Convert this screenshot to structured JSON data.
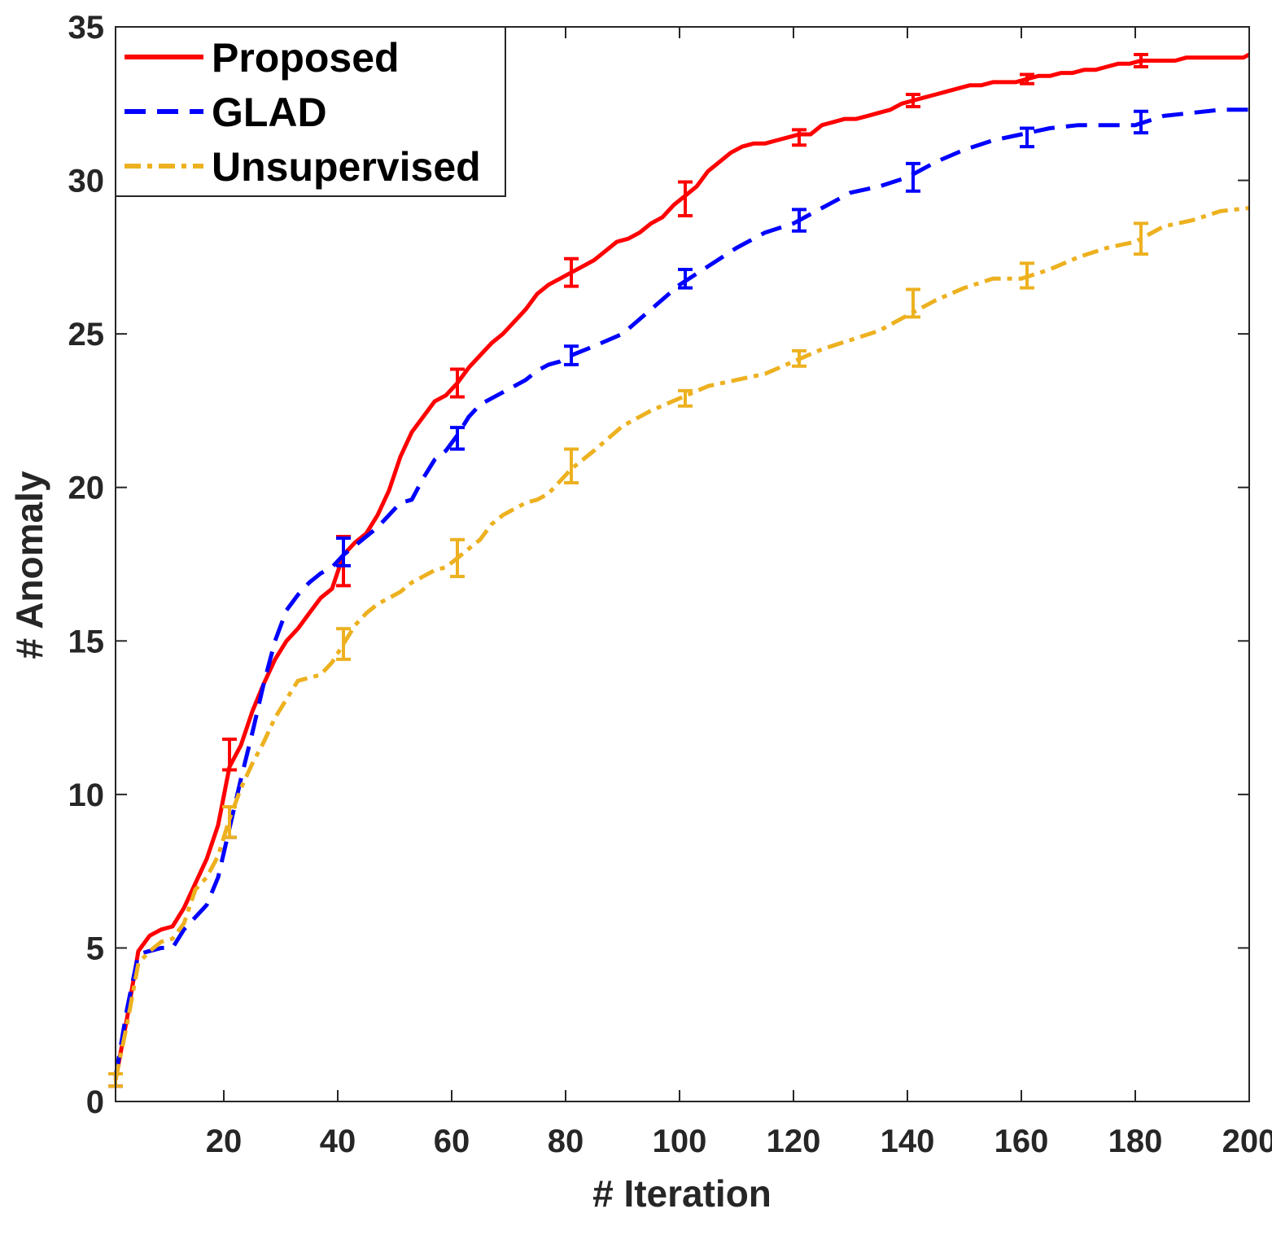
{
  "chart_data": {
    "type": "line",
    "xlabel": "# Iteration",
    "ylabel": "# Anomaly",
    "xlim": [
      1,
      200
    ],
    "ylim": [
      0,
      35
    ],
    "xticks": [
      20,
      40,
      60,
      80,
      100,
      120,
      140,
      160,
      180,
      200
    ],
    "xtick_labels": [
      "20",
      "40",
      "60",
      "80",
      "100",
      "120",
      "140",
      "160",
      "180",
      "200"
    ],
    "yticks": [
      0,
      5,
      10,
      15,
      20,
      25,
      30,
      35
    ],
    "ytick_labels": [
      "0",
      "5",
      "10",
      "15",
      "20",
      "25",
      "30",
      "35"
    ],
    "grid": false,
    "legend_position": "top-left",
    "series": [
      {
        "name": "Proposed",
        "color": "#ff0000",
        "dash": "solid",
        "x": [
          1,
          3,
          5,
          7,
          9,
          11,
          13,
          15,
          17,
          19,
          21,
          23,
          25,
          27,
          29,
          31,
          33,
          35,
          37,
          39,
          41,
          43,
          45,
          47,
          49,
          51,
          53,
          55,
          57,
          59,
          61,
          63,
          65,
          67,
          69,
          71,
          73,
          75,
          77,
          79,
          81,
          83,
          85,
          87,
          89,
          91,
          93,
          95,
          97,
          99,
          101,
          103,
          105,
          107,
          109,
          111,
          113,
          115,
          117,
          119,
          121,
          123,
          125,
          127,
          129,
          131,
          133,
          135,
          137,
          139,
          141,
          143,
          145,
          147,
          149,
          151,
          153,
          155,
          157,
          159,
          161,
          163,
          165,
          167,
          169,
          171,
          173,
          175,
          177,
          179,
          181,
          183,
          185,
          187,
          189,
          191,
          193,
          195,
          197,
          199,
          200
        ],
        "y": [
          0.7,
          2.7,
          4.9,
          5.4,
          5.6,
          5.7,
          6.3,
          7.1,
          7.9,
          9.0,
          10.9,
          11.6,
          12.7,
          13.6,
          14.4,
          15.0,
          15.4,
          15.9,
          16.4,
          16.7,
          17.8,
          18.2,
          18.5,
          19.1,
          19.9,
          21.0,
          21.8,
          22.3,
          22.8,
          23.0,
          23.4,
          23.9,
          24.3,
          24.7,
          25.0,
          25.4,
          25.8,
          26.3,
          26.6,
          26.8,
          27.0,
          27.2,
          27.4,
          27.7,
          28.0,
          28.1,
          28.3,
          28.6,
          28.8,
          29.2,
          29.5,
          29.8,
          30.3,
          30.6,
          30.9,
          31.1,
          31.2,
          31.2,
          31.3,
          31.4,
          31.5,
          31.5,
          31.8,
          31.9,
          32.0,
          32.0,
          32.1,
          32.2,
          32.3,
          32.5,
          32.6,
          32.7,
          32.8,
          32.9,
          33.0,
          33.1,
          33.1,
          33.2,
          33.2,
          33.2,
          33.3,
          33.4,
          33.4,
          33.5,
          33.5,
          33.6,
          33.6,
          33.7,
          33.8,
          33.8,
          33.9,
          33.9,
          33.9,
          33.9,
          34.0,
          34.0,
          34.0,
          34.0,
          34.0,
          34.0,
          34.1
        ],
        "error_bars": {
          "x": [
            1,
            21,
            41,
            61,
            81,
            101,
            121,
            141,
            161,
            181
          ],
          "y": [
            0.7,
            11.3,
            17.6,
            23.4,
            27.0,
            29.4,
            31.4,
            32.6,
            33.3,
            33.9
          ],
          "err": [
            0.2,
            0.5,
            0.8,
            0.45,
            0.45,
            0.55,
            0.25,
            0.2,
            0.15,
            0.2
          ]
        }
      },
      {
        "name": "GLAD",
        "color": "#0000ff",
        "dash": "dashed",
        "x": [
          1,
          3,
          5,
          7,
          9,
          11,
          13,
          15,
          17,
          19,
          21,
          23,
          25,
          27,
          29,
          31,
          33,
          35,
          37,
          39,
          41,
          43,
          45,
          47,
          49,
          51,
          53,
          55,
          57,
          59,
          61,
          63,
          65,
          67,
          69,
          71,
          73,
          75,
          77,
          79,
          81,
          85,
          90,
          95,
          100,
          105,
          110,
          115,
          120,
          125,
          130,
          135,
          140,
          145,
          150,
          155,
          160,
          165,
          170,
          175,
          180,
          185,
          190,
          195,
          200
        ],
        "y": [
          0.8,
          3.0,
          4.8,
          4.9,
          5.0,
          5.0,
          5.6,
          6.0,
          6.4,
          7.3,
          8.9,
          10.5,
          12.0,
          13.6,
          15.0,
          16.0,
          16.5,
          16.9,
          17.2,
          17.4,
          17.8,
          18.1,
          18.4,
          18.7,
          19.1,
          19.5,
          19.6,
          20.3,
          20.9,
          21.2,
          21.7,
          22.3,
          22.7,
          22.9,
          23.1,
          23.3,
          23.5,
          23.8,
          24.0,
          24.1,
          24.3,
          24.6,
          25.0,
          25.8,
          26.6,
          27.2,
          27.8,
          28.3,
          28.6,
          29.1,
          29.6,
          29.8,
          30.1,
          30.6,
          31.0,
          31.3,
          31.5,
          31.7,
          31.8,
          31.8,
          31.8,
          32.1,
          32.2,
          32.3,
          32.3
        ],
        "error_bars": {
          "x": [
            1,
            21,
            41,
            61,
            81,
            101,
            121,
            141,
            161,
            181
          ],
          "y": [
            0.7,
            9.1,
            17.9,
            21.6,
            24.3,
            26.8,
            28.7,
            30.1,
            31.4,
            31.9
          ],
          "err": [
            0.2,
            0.5,
            0.45,
            0.35,
            0.3,
            0.3,
            0.35,
            0.45,
            0.3,
            0.35
          ]
        }
      },
      {
        "name": "Unsupervised",
        "color": "#edb120",
        "dash": "dashdot",
        "x": [
          1,
          3,
          5,
          7,
          9,
          11,
          13,
          15,
          17,
          19,
          21,
          23,
          25,
          27,
          29,
          31,
          33,
          35,
          37,
          39,
          41,
          43,
          45,
          47,
          49,
          51,
          53,
          55,
          57,
          59,
          61,
          63,
          65,
          67,
          69,
          71,
          73,
          75,
          77,
          79,
          81,
          85,
          90,
          95,
          100,
          105,
          110,
          115,
          120,
          125,
          130,
          135,
          140,
          145,
          150,
          155,
          160,
          165,
          170,
          175,
          180,
          185,
          190,
          195,
          200
        ],
        "y": [
          0.7,
          2.5,
          4.5,
          4.9,
          5.2,
          5.3,
          5.8,
          6.9,
          7.3,
          8.0,
          9.2,
          10.2,
          11.0,
          11.7,
          12.5,
          13.1,
          13.7,
          13.8,
          13.9,
          14.3,
          14.9,
          15.5,
          15.9,
          16.2,
          16.4,
          16.6,
          16.9,
          17.1,
          17.3,
          17.4,
          17.7,
          18.0,
          18.3,
          18.8,
          19.1,
          19.3,
          19.5,
          19.6,
          19.8,
          20.2,
          20.6,
          21.2,
          22.0,
          22.5,
          22.9,
          23.3,
          23.5,
          23.7,
          24.1,
          24.5,
          24.8,
          25.1,
          25.6,
          26.1,
          26.5,
          26.8,
          26.8,
          27.1,
          27.5,
          27.8,
          28.0,
          28.5,
          28.7,
          29.0,
          29.1
        ],
        "error_bars": {
          "x": [
            1,
            21,
            41,
            61,
            81,
            101,
            121,
            141,
            161,
            181
          ],
          "y": [
            0.7,
            9.1,
            14.9,
            17.7,
            20.7,
            22.9,
            24.2,
            26.0,
            26.9,
            28.1
          ],
          "err": [
            0.2,
            0.5,
            0.5,
            0.6,
            0.55,
            0.25,
            0.25,
            0.45,
            0.4,
            0.5
          ]
        }
      }
    ]
  }
}
